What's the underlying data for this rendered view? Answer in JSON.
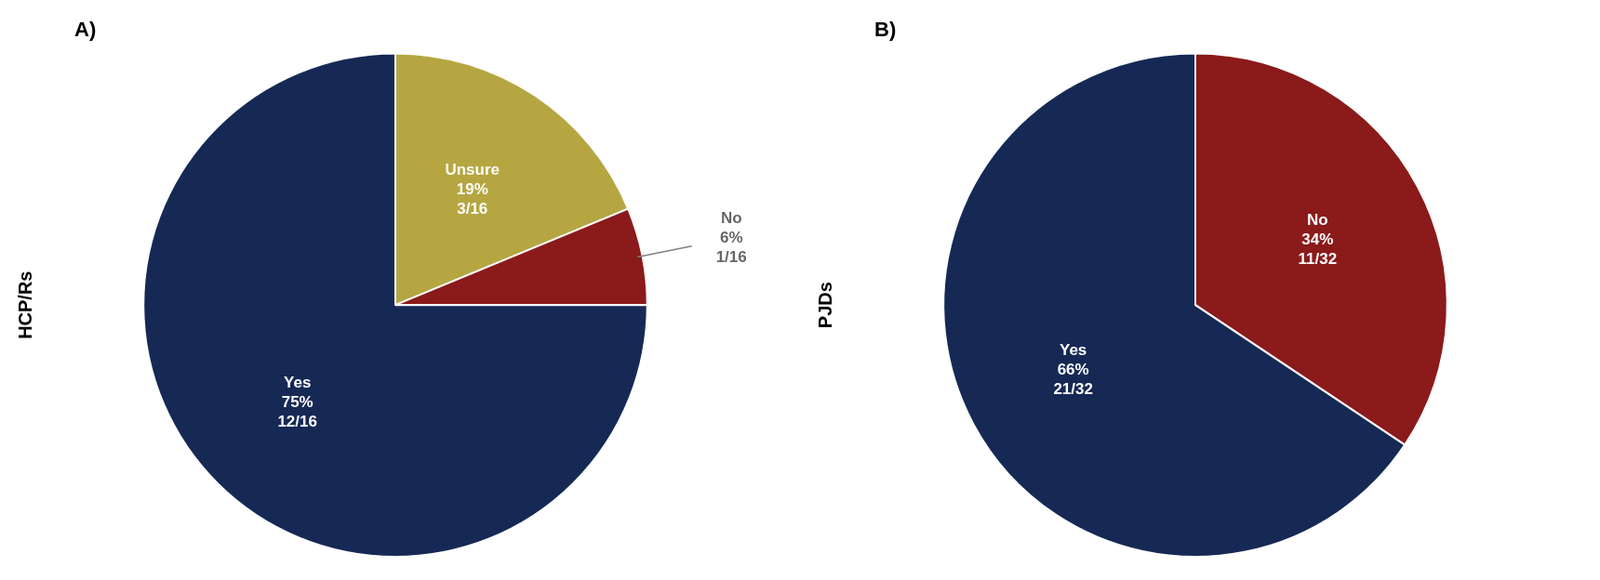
{
  "chart_data": [
    {
      "type": "pie",
      "title": "A)",
      "ylabel": "HCP/Rs",
      "categories": [
        "Unsure",
        "No",
        "Yes"
      ],
      "values": [
        3,
        1,
        12
      ],
      "value_labels": [
        "19%\n3/16",
        "6%\n1/16",
        "75%\n12/16"
      ],
      "colors": [
        "#b5a642",
        "#8b1a1a",
        "#162955"
      ],
      "data_labels": true
    },
    {
      "type": "pie",
      "title": "B)",
      "ylabel": "PJDs",
      "categories": [
        "No",
        "Yes"
      ],
      "values": [
        11,
        21
      ],
      "value_labels": [
        "34%\n11/32",
        "66%\n21/32"
      ],
      "colors": [
        "#8b1a1a",
        "#162955"
      ],
      "data_labels": true
    }
  ]
}
